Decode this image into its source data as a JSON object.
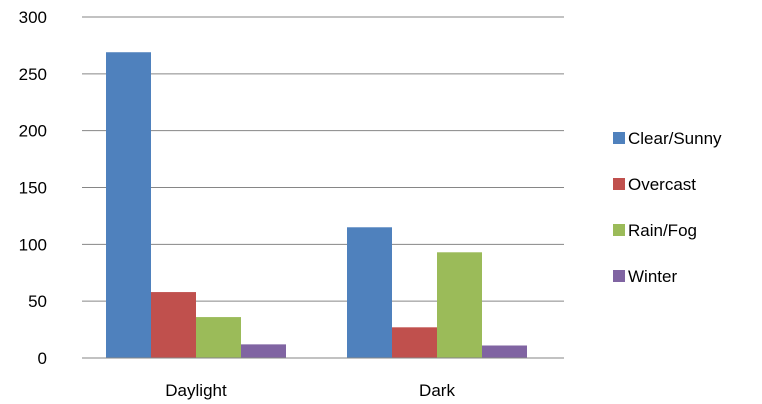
{
  "chart_data": {
    "type": "bar",
    "categories": [
      "Daylight",
      "Dark"
    ],
    "series": [
      {
        "name": "Clear/Sunny",
        "values": [
          269,
          115
        ],
        "color": "#4F81BD"
      },
      {
        "name": "Overcast",
        "values": [
          58,
          27
        ],
        "color": "#C0504D"
      },
      {
        "name": "Rain/Fog",
        "values": [
          36,
          93
        ],
        "color": "#9BBB59"
      },
      {
        "name": "Winter",
        "values": [
          12,
          11
        ],
        "color": "#8064A2"
      }
    ],
    "ylim": [
      0,
      300
    ],
    "yticks": [
      0,
      50,
      100,
      150,
      200,
      250,
      300
    ],
    "grid": true,
    "legend": "right",
    "gridline_color": "#868686"
  }
}
